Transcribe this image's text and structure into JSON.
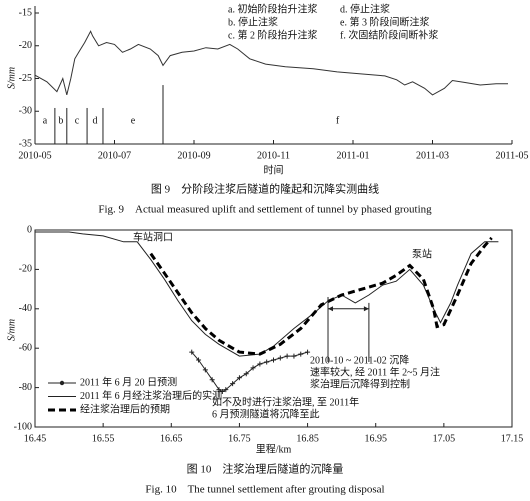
{
  "chart_data": [
    {
      "type": "line",
      "title": "图 9　分阶段注浆后隧道的隆起和沉降实测曲线",
      "subtitle": "Fig. 9　Actual measured uplift and settlement of tunnel by phased grouting",
      "xlabel": "时间",
      "ylabel": "S/mm",
      "xlim": [
        0,
        12
      ],
      "xticks": [
        {
          "value": 0,
          "label": "2010-05"
        },
        {
          "value": 2,
          "label": "2010-07"
        },
        {
          "value": 4,
          "label": "2010-09"
        },
        {
          "value": 6,
          "label": "2010-11"
        },
        {
          "value": 8,
          "label": "2011-01"
        },
        {
          "value": 10,
          "label": "2011-03"
        },
        {
          "value": 12,
          "label": "2011-05"
        }
      ],
      "ylim": [
        -35,
        -15
      ],
      "yticks": [
        -35,
        -30,
        -25,
        -20,
        -15
      ],
      "series": [
        {
          "color": "#333333",
          "x": [
            0,
            0.3,
            0.55,
            0.7,
            0.8,
            0.9,
            1.0,
            1.1,
            1.25,
            1.4,
            1.45,
            1.6,
            1.8,
            2.0,
            2.2,
            2.4,
            2.6,
            2.9,
            3.1,
            3.22,
            3.4,
            3.7,
            4.0,
            4.3,
            4.6,
            4.9,
            5.1,
            5.4,
            5.8,
            6.3,
            7.0,
            7.6,
            8.2,
            8.8,
            9.1,
            9.3,
            9.5,
            9.8,
            10.0,
            10.3,
            10.5,
            10.8,
            11.2,
            11.6,
            11.9
          ],
          "values": [
            -24.5,
            -25.5,
            -27,
            -25,
            -27.5,
            -25,
            -22,
            -21,
            -19.5,
            -17.8,
            -18.5,
            -20,
            -19.5,
            -19.8,
            -21,
            -20.5,
            -19.8,
            -20.5,
            -21.5,
            -23,
            -21.5,
            -21,
            -20.8,
            -20.3,
            -20.5,
            -19.8,
            -20.5,
            -22,
            -22.8,
            -23.2,
            -23.5,
            -24,
            -24.3,
            -24.6,
            -25.2,
            -26,
            -25.5,
            -26.5,
            -27.5,
            -26.5,
            -25.3,
            -25.6,
            -26,
            -25.8,
            -25.8
          ]
        }
      ],
      "phase_labels": [
        "a",
        "b",
        "c",
        "d",
        "e",
        "f"
      ],
      "phase_boundaries": [
        0.5,
        0.8,
        1.31,
        1.71,
        3.22
      ],
      "notes": [
        "a. 初始阶段抬升注浆",
        "b. 停止注浆",
        "c. 第 2 阶段抬升注浆",
        "d. 停止注浆",
        "e. 第 3 阶段间断注浆",
        "f. 次固结阶段间断补浆"
      ]
    },
    {
      "type": "line",
      "title": "图 10　注浆治理后隧道的沉降量",
      "subtitle": "Fig. 10　The tunnel settlement after grouting disposal",
      "xlabel": "里程/km",
      "ylabel": "S/mm",
      "xlim": [
        16.45,
        17.15
      ],
      "xticks": [
        16.45,
        16.55,
        16.65,
        16.75,
        16.85,
        16.95,
        17.05,
        17.15
      ],
      "ylim": [
        -100,
        0
      ],
      "yticks": [
        -100,
        -80,
        -60,
        -40,
        -20,
        0
      ],
      "frame": true,
      "series": [
        {
          "name": "2011 年 6 月 20 日预测",
          "color": "#222222",
          "width": 1,
          "marker": "+",
          "x": [
            16.68,
            16.69,
            16.7,
            16.71,
            16.72,
            16.725,
            16.73,
            16.74,
            16.75,
            16.76,
            16.77,
            16.78,
            16.79,
            16.8,
            16.81,
            16.82,
            16.83,
            16.84,
            16.85
          ],
          "values": [
            -62,
            -66,
            -71,
            -76,
            -81,
            -82,
            -81,
            -78,
            -75,
            -73,
            -70,
            -68,
            -67,
            -66,
            -65,
            -64,
            -64,
            -63,
            -62
          ]
        },
        {
          "name": "2011 年 6 月经注浆治理后的实测",
          "color": "#222222",
          "width": 1,
          "x": [
            16.45,
            16.5,
            16.52,
            16.55,
            16.58,
            16.6,
            16.62,
            16.64,
            16.66,
            16.68,
            16.7,
            16.72,
            16.75,
            16.78,
            16.8,
            16.83,
            16.86,
            16.88,
            16.9,
            16.92,
            16.94,
            16.96,
            16.98,
            17.0,
            17.02,
            17.035,
            17.045,
            17.06,
            17.07,
            17.09,
            17.11,
            17.13
          ],
          "values": [
            -1,
            -1,
            -2,
            -3,
            -6,
            -6,
            -15,
            -25,
            -36,
            -46,
            -53,
            -58,
            -64,
            -63,
            -59,
            -50,
            -42,
            -36,
            -33,
            -37,
            -33,
            -28,
            -26,
            -20,
            -28,
            -40,
            -47,
            -37,
            -28,
            -12,
            -6,
            -6
          ]
        },
        {
          "name": "经注浆治理后的预期",
          "color": "#000000",
          "width": 3,
          "dash": true,
          "x": [
            16.62,
            16.64,
            16.66,
            16.68,
            16.7,
            16.72,
            16.75,
            16.78,
            16.81,
            16.84,
            16.87,
            16.9,
            16.93,
            16.96,
            16.98,
            17.0,
            17.02,
            17.035,
            17.04,
            17.05,
            17.07,
            17.09,
            17.11,
            17.12
          ],
          "values": [
            -12,
            -22,
            -32,
            -42,
            -50,
            -56,
            -62,
            -63,
            -58,
            -50,
            -38,
            -33,
            -30,
            -27,
            -23,
            -18,
            -25,
            -40,
            -49,
            -48,
            -33,
            -17,
            -8,
            -4
          ]
        }
      ],
      "annotations": [
        [
          "车站洞口"
        ],
        [
          "泵站"
        ],
        [
          "2010-10 ~ 2011-02 沉降",
          "速率较大, 经 2011 年 2~5 月注",
          "浆治理后沉降得到控制"
        ],
        [
          "如不及时进行注浆治理, 至 2011年",
          "6 月预测隧道将沉降至此"
        ]
      ]
    }
  ]
}
